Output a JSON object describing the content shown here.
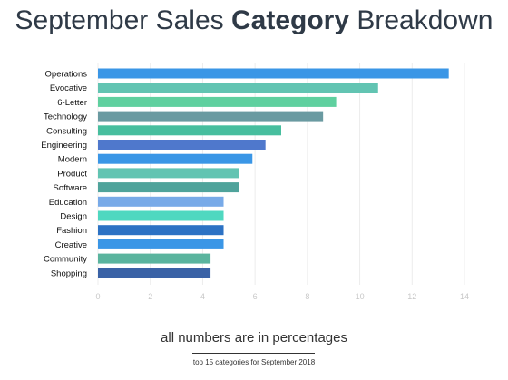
{
  "title": {
    "prefix": "September Sales ",
    "bold": "Category",
    "suffix": " Breakdown"
  },
  "footnote": "all numbers are in percentages",
  "subnote": "top 15 categories for September 2018",
  "chart_data": {
    "type": "bar",
    "orientation": "horizontal",
    "categories": [
      "Operations",
      "Evocative",
      "6-Letter",
      "Technology",
      "Consulting",
      "Engineering",
      "Modern",
      "Product",
      "Software",
      "Education",
      "Design",
      "Fashion",
      "Creative",
      "Community",
      "Shopping"
    ],
    "values": [
      13.4,
      10.7,
      9.1,
      8.6,
      7.0,
      6.4,
      5.9,
      5.4,
      5.4,
      4.8,
      4.8,
      4.8,
      4.8,
      4.3,
      4.3
    ],
    "colors": [
      "#3a96e6",
      "#62c4b2",
      "#5fd09f",
      "#6a9aa1",
      "#47be9e",
      "#4f78cc",
      "#3a96e6",
      "#62c4b2",
      "#4fa39b",
      "#78aae8",
      "#4fd8c0",
      "#2c72c4",
      "#3a96e6",
      "#5ab49e",
      "#3a62a6"
    ],
    "xlim": [
      0,
      14
    ],
    "xticks": [
      0,
      2,
      4,
      6,
      8,
      10,
      12,
      14
    ],
    "grid": true,
    "legend": "none"
  }
}
